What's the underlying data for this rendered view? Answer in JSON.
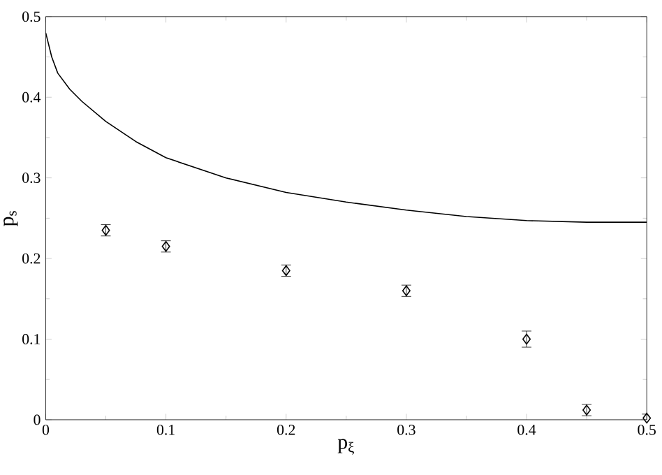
{
  "chart_data": {
    "type": "line",
    "xlabel": "p$_{ξ}$",
    "ylabel": "p$_{s}$",
    "xlim": [
      0,
      0.5
    ],
    "ylim": [
      0,
      0.5
    ],
    "xticks": [
      0,
      0.1,
      0.2,
      0.3,
      0.4,
      0.5
    ],
    "yticks": [
      0,
      0.1,
      0.2,
      0.3,
      0.4,
      0.5
    ],
    "series": [
      {
        "color": "#000000",
        "marker": "none",
        "line_style": "solid",
        "x": [
          0,
          0.005,
          0.01,
          0.02,
          0.03,
          0.05,
          0.075,
          0.1,
          0.15,
          0.2,
          0.25,
          0.3,
          0.35,
          0.4,
          0.45,
          0.5
        ],
        "values": [
          0.48,
          0.45,
          0.43,
          0.41,
          0.395,
          0.37,
          0.345,
          0.325,
          0.3,
          0.282,
          0.27,
          0.26,
          0.252,
          0.247,
          0.245,
          0.245
        ]
      },
      {
        "type": "scatter",
        "color": "#000000",
        "marker": "diamond",
        "x": [
          0.05,
          0.1,
          0.2,
          0.3,
          0.4,
          0.45,
          0.5
        ],
        "values": [
          0.235,
          0.215,
          0.185,
          0.16,
          0.1,
          0.012,
          0.002
        ],
        "errors": [
          0.007,
          0.007,
          0.007,
          0.007,
          0.01,
          0.007,
          0.005
        ]
      }
    ]
  }
}
